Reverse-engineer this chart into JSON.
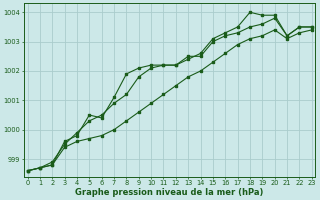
{
  "xlabel": "Graphe pression niveau de la mer (hPa)",
  "background_color": "#cce8e8",
  "grid_color": "#aacccc",
  "line_color": "#1a5c1a",
  "xlim_min": -0.3,
  "xlim_max": 23.3,
  "ylim_min": 998.4,
  "ylim_max": 1004.3,
  "yticks": [
    999,
    1000,
    1001,
    1002,
    1003,
    1004
  ],
  "xticks": [
    0,
    1,
    2,
    3,
    4,
    5,
    6,
    7,
    8,
    9,
    10,
    11,
    12,
    13,
    14,
    15,
    16,
    17,
    18,
    19,
    20,
    21,
    22,
    23
  ],
  "line1_x": [
    0,
    1,
    2,
    3,
    4,
    5,
    6,
    7,
    8,
    9,
    10,
    11,
    12,
    13,
    14,
    15,
    16,
    17,
    18,
    19,
    20,
    21,
    22,
    23
  ],
  "line1_y": [
    998.6,
    998.7,
    998.8,
    999.6,
    999.8,
    1000.5,
    1000.4,
    1001.1,
    1001.9,
    1002.1,
    1002.2,
    1002.2,
    1002.2,
    1002.5,
    1002.5,
    1003.0,
    1003.2,
    1003.3,
    1003.5,
    1003.6,
    1003.8,
    1003.2,
    1003.5,
    1003.5
  ],
  "line2_x": [
    0,
    1,
    2,
    3,
    4,
    5,
    6,
    7,
    8,
    9,
    10,
    11,
    12,
    13,
    14,
    15,
    16,
    17,
    18,
    19,
    20,
    21,
    22,
    23
  ],
  "line2_y": [
    998.6,
    998.7,
    998.9,
    999.5,
    999.9,
    1000.3,
    1000.5,
    1000.9,
    1001.2,
    1001.8,
    1002.1,
    1002.2,
    1002.2,
    1002.4,
    1002.6,
    1003.1,
    1003.3,
    1003.5,
    1004.0,
    1003.9,
    1003.9,
    1003.2,
    1003.5,
    1003.5
  ],
  "line3_x": [
    0,
    1,
    2,
    3,
    4,
    5,
    6,
    7,
    8,
    9,
    10,
    11,
    12,
    13,
    14,
    15,
    16,
    17,
    18,
    19,
    20,
    21,
    22,
    23
  ],
  "line3_y": [
    998.6,
    998.7,
    998.8,
    999.4,
    999.6,
    999.7,
    999.8,
    1000.0,
    1000.3,
    1000.6,
    1000.9,
    1001.2,
    1001.5,
    1001.8,
    1002.0,
    1002.3,
    1002.6,
    1002.9,
    1003.1,
    1003.2,
    1003.4,
    1003.1,
    1003.3,
    1003.4
  ]
}
